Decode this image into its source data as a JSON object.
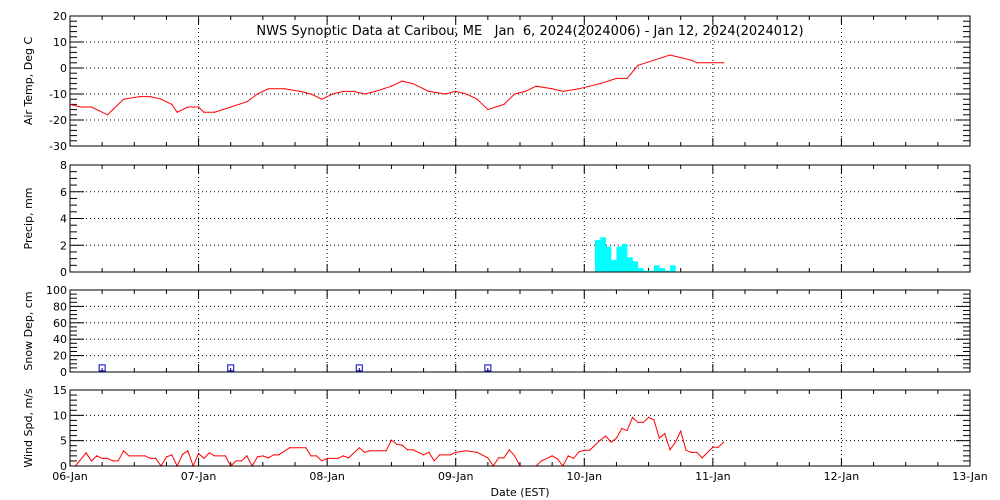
{
  "title": "NWS Synoptic Data at Caribou, ME   Jan  6, 2024(2024006) - Jan 12, 2024(2024012)",
  "xlabel": "Date (EST)",
  "x_ticks": [
    "06-Jan",
    "07-Jan",
    "08-Jan",
    "09-Jan",
    "10-Jan",
    "11-Jan",
    "12-Jan",
    "13-Jan"
  ],
  "chart_data": [
    {
      "type": "line",
      "ylabel": "Air Temp, Deg C",
      "ylim": [
        -30,
        20
      ],
      "y_ticks": [
        -30,
        -20,
        -10,
        0,
        10,
        20
      ],
      "grid": true,
      "color": "#ff0000",
      "times": [
        "01-06 00:00",
        "01-06 02:00",
        "01-06 04:00",
        "01-06 07:00",
        "01-06 08:00",
        "01-06 10:00",
        "01-06 13:00",
        "01-06 15:00",
        "01-06 17:00",
        "01-06 19:00",
        "01-06 20:00",
        "01-06 22:00",
        "01-07 00:00",
        "01-07 01:00",
        "01-07 03:00",
        "01-07 06:00",
        "01-07 09:00",
        "01-07 11:00",
        "01-07 13:00",
        "01-07 16:00",
        "01-07 19:00",
        "01-07 21:00",
        "01-07 23:00",
        "01-08 01:00",
        "01-08 03:00",
        "01-08 05:00",
        "01-08 07:00",
        "01-08 09:00",
        "01-08 12:00",
        "01-08 14:00",
        "01-08 16:00",
        "01-08 18:00",
        "01-08 19:00",
        "01-08 22:00",
        "01-09 00:00",
        "01-09 02:00",
        "01-09 04:00",
        "01-09 06:00",
        "01-09 09:00",
        "01-09 11:00",
        "01-09 13:00",
        "01-09 15:00",
        "01-09 18:00",
        "01-09 20:00",
        "01-09 23:00",
        "01-10 01:00",
        "01-10 03:00",
        "01-10 06:00",
        "01-10 08:00",
        "01-10 10:00",
        "01-10 13:00",
        "01-10 16:00",
        "01-10 18:00",
        "01-10 20:00",
        "01-10 21:00",
        "01-11 02:00"
      ],
      "values": [
        -14,
        -15,
        -15,
        -18,
        -16,
        -12,
        -11,
        -11,
        -12,
        -14,
        -17,
        -15,
        -15,
        -17,
        -17,
        -15,
        -13,
        -10,
        -8,
        -8,
        -9,
        -10,
        -12,
        -10,
        -9,
        -9,
        -10,
        -9,
        -7,
        -5,
        -6,
        -8,
        -9,
        -10,
        -9,
        -10,
        -12,
        -16,
        -14,
        -10,
        -9,
        -7,
        -8,
        -9,
        -8,
        -7,
        -6,
        -4,
        -4,
        1,
        3,
        5,
        4,
        3,
        2,
        2
      ]
    },
    {
      "type": "bar",
      "ylabel": "Precip, mm",
      "ylim": [
        0,
        8
      ],
      "y_ticks": [
        0,
        2,
        4,
        6,
        8
      ],
      "grid": true,
      "color": "#00ffff",
      "times": [
        "01-10 02:00",
        "01-10 03:00",
        "01-10 04:00",
        "01-10 05:00",
        "01-10 06:00",
        "01-10 07:00",
        "01-10 08:00",
        "01-10 09:00",
        "01-10 10:00",
        "01-10 11:00",
        "01-10 12:00",
        "01-10 13:00",
        "01-10 14:00",
        "01-10 15:00",
        "01-10 16:00"
      ],
      "values": [
        2.4,
        2.6,
        1.9,
        0.9,
        1.9,
        2.1,
        1.1,
        0.8,
        0.3,
        0.1,
        0.1,
        0.5,
        0.3,
        0.1,
        0.5
      ]
    },
    {
      "type": "scatter",
      "ylabel": "Snow Dep, cm",
      "ylim": [
        0,
        100
      ],
      "y_ticks": [
        0,
        20,
        40,
        60,
        80,
        100
      ],
      "grid": true,
      "color": "#0000cc",
      "marker": "square",
      "times": [
        "01-06 06:00",
        "01-07 06:00",
        "01-08 06:00",
        "01-09 06:00"
      ],
      "values": [
        5,
        5,
        5,
        5
      ]
    },
    {
      "type": "line",
      "ylabel": "Wind Spd, m/s",
      "ylim": [
        0,
        15
      ],
      "y_ticks": [
        0,
        5,
        10,
        15
      ],
      "grid": true,
      "color": "#ff0000",
      "times": [
        "01-06 01:00",
        "01-06 03:00",
        "01-06 04:00",
        "01-06 05:00",
        "01-06 06:00",
        "01-06 07:00",
        "01-06 08:00",
        "01-06 09:00",
        "01-06 10:00",
        "01-06 11:00",
        "01-06 14:00",
        "01-06 15:00",
        "01-06 16:00",
        "01-06 17:00",
        "01-06 18:00",
        "01-06 19:00",
        "01-06 20:00",
        "01-06 21:00",
        "01-06 22:00",
        "01-06 23:00",
        "01-07 00:00",
        "01-07 01:00",
        "01-07 02:00",
        "01-07 03:00",
        "01-07 05:00",
        "01-07 06:00",
        "01-07 07:00",
        "01-07 08:00",
        "01-07 09:00",
        "01-07 10:00",
        "01-07 11:00",
        "01-07 12:00",
        "01-07 13:00",
        "01-07 14:00",
        "01-07 15:00",
        "01-07 17:00",
        "01-07 20:00",
        "01-07 21:00",
        "01-07 22:00",
        "01-07 23:00",
        "01-08 00:00",
        "01-08 02:00",
        "01-08 03:00",
        "01-08 04:00",
        "01-08 06:00",
        "01-08 07:00",
        "01-08 08:00",
        "01-08 11:00",
        "01-08 12:00",
        "01-08 13:00",
        "01-08 14:00",
        "01-08 15:00",
        "01-08 16:00",
        "01-08 18:00",
        "01-08 19:00",
        "01-08 20:00",
        "01-08 21:00",
        "01-08 23:00",
        "01-09 00:00",
        "01-09 02:00",
        "01-09 04:00",
        "01-09 06:00",
        "01-09 07:00",
        "01-09 08:00",
        "01-09 09:00",
        "01-09 10:00",
        "01-09 11:00",
        "01-09 12:00",
        "01-09 15:00",
        "01-09 16:00",
        "01-09 18:00",
        "01-09 19:00",
        "01-09 20:00",
        "01-09 21:00",
        "01-09 22:00",
        "01-09 23:00",
        "01-10 00:00",
        "01-10 01:00",
        "01-10 03:00",
        "01-10 04:00",
        "01-10 05:00",
        "01-10 06:00",
        "01-10 07:00",
        "01-10 08:00",
        "01-10 09:00",
        "01-10 10:00",
        "01-10 11:00",
        "01-10 12:00",
        "01-10 13:00",
        "01-10 14:00",
        "01-10 15:00",
        "01-10 16:00",
        "01-10 17:00",
        "01-10 18:00",
        "01-10 19:00",
        "01-10 20:00",
        "01-10 21:00",
        "01-10 22:00",
        "01-11 00:00",
        "01-11 01:00",
        "01-11 02:00"
      ],
      "values": [
        0,
        2.6,
        1,
        2,
        1.5,
        1.5,
        1,
        1,
        3,
        2,
        2,
        1.5,
        1.5,
        0,
        1.8,
        2.2,
        0,
        2.3,
        3,
        0,
        2.5,
        1.5,
        2.6,
        2,
        2,
        0,
        1,
        1,
        2,
        0,
        1.8,
        2,
        1.6,
        2.2,
        2.2,
        3.6,
        3.6,
        2,
        2,
        1,
        1.5,
        1.5,
        2,
        1.6,
        3.6,
        2.7,
        3,
        3,
        5.1,
        4.3,
        4.1,
        3.2,
        3.2,
        2.2,
        2.7,
        1,
        2.2,
        2.2,
        2.7,
        3,
        2.7,
        1.6,
        0,
        1.6,
        1.6,
        3.2,
        2,
        0,
        0,
        1,
        2,
        1.4,
        0,
        2,
        1.5,
        2.8,
        3.1,
        3.1,
        5.1,
        5.9,
        4.7,
        5.5,
        7.4,
        7,
        9.6,
        8.6,
        8.6,
        9.6,
        9.1,
        5.5,
        6.4,
        3.2,
        4.7,
        6.9,
        3.1,
        2.7,
        2.7,
        1.6,
        3.7,
        3.7,
        4.7
      ]
    }
  ]
}
